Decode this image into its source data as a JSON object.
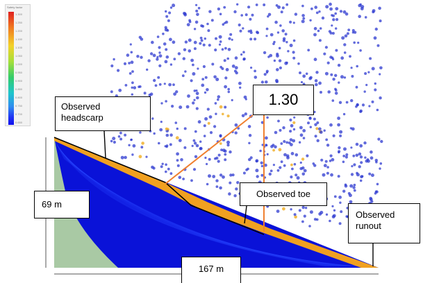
{
  "legend": {
    "title": "Safety factor",
    "ticks": [
      "1.300",
      "1.250",
      "1.200",
      "1.150",
      "1.100",
      "1.050",
      "1.000",
      "0.950",
      "0.900",
      "0.850",
      "0.800",
      "0.750",
      "0.700",
      "0.650"
    ],
    "gradient": [
      "#e02020",
      "#f07a20",
      "#f3d22a",
      "#a6df3a",
      "#34cc6a",
      "#1ec5cc",
      "#2f8cf0",
      "#2035f4",
      "#1010ee"
    ]
  },
  "annotations": {
    "factor_value": "1.30",
    "headscarp_line1": "Observed",
    "headscarp_line2": "headscarp",
    "toe": "Observed toe",
    "runout_line1": "Observed",
    "runout_line2": "runout",
    "height": "69 m",
    "width": "167 m"
  },
  "colors": {
    "slope_fill": "#0a12d8",
    "ground_fill": "#a9c9a4",
    "failure_surface": "#f0a020",
    "leader_line": "#f08030",
    "particles": "#2e3ad0",
    "dimension_line": "#555555"
  }
}
